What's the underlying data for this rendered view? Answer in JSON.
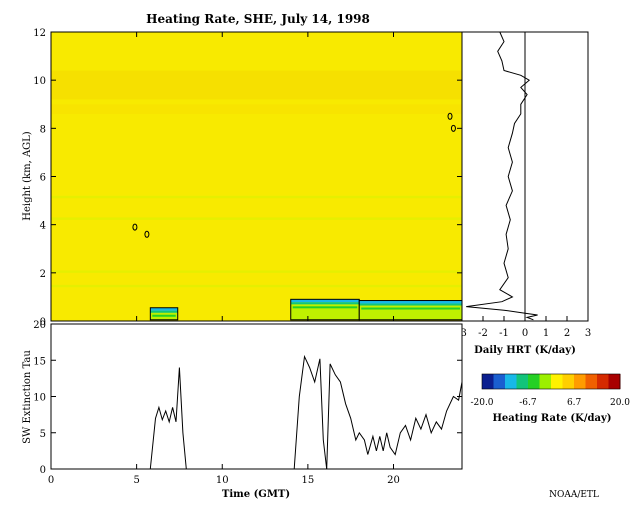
{
  "chart_data": [
    {
      "type": "heatmap",
      "title": "Heating Rate, SHE, July 14, 1998",
      "xlabel": "",
      "ylabel": "Height (km, AGL)",
      "xlim": [
        0,
        24
      ],
      "ylim": [
        0,
        12
      ],
      "yticks": [
        "0",
        "2",
        "4",
        "6",
        "8",
        "10",
        "12"
      ],
      "background_value_k_per_day": 0.5,
      "bands": [
        {
          "y0": 9.2,
          "y1": 10.4,
          "color": "#f6e000"
        },
        {
          "y0": 8.6,
          "y1": 9.0,
          "color": "#f8e400"
        },
        {
          "y0": 4.2,
          "y1": 4.3,
          "color": "#e6ef00"
        },
        {
          "y0": 5.1,
          "y1": 5.2,
          "color": "#e6ef00"
        },
        {
          "y0": 2.0,
          "y1": 2.1,
          "color": "#e6ef00"
        },
        {
          "y0": 1.4,
          "y1": 1.5,
          "color": "#e6ef00"
        }
      ],
      "cloud_blocks": [
        {
          "x0": 5.8,
          "x1": 7.4,
          "y0": 0.05,
          "y1": 0.55
        },
        {
          "x0": 14.0,
          "x1": 18.0,
          "y0": 0.05,
          "y1": 0.9
        },
        {
          "x0": 18.0,
          "x1": 24.0,
          "y0": 0.05,
          "y1": 0.85
        }
      ],
      "contour_spots": [
        {
          "x": 4.9,
          "y": 3.9
        },
        {
          "x": 5.6,
          "y": 3.6
        },
        {
          "x": 23.3,
          "y": 8.5
        },
        {
          "x": 23.5,
          "y": 8.0
        }
      ]
    },
    {
      "type": "line",
      "xlabel": "Daily HRT (K/day)",
      "ylabel": "",
      "xlim": [
        -3,
        3
      ],
      "ylim": [
        0,
        12
      ],
      "xticks": [
        "-3",
        "-2",
        "-1",
        "0",
        "1",
        "2",
        "3"
      ],
      "x_reference_line": 0,
      "points": [
        [
          -1.2,
          12.0
        ],
        [
          -1.0,
          11.6
        ],
        [
          -1.3,
          11.2
        ],
        [
          -1.1,
          10.8
        ],
        [
          -1.0,
          10.4
        ],
        [
          -0.2,
          10.2
        ],
        [
          0.2,
          10.0
        ],
        [
          -0.2,
          9.7
        ],
        [
          0.1,
          9.4
        ],
        [
          -0.2,
          9.0
        ],
        [
          -0.2,
          8.6
        ],
        [
          -0.5,
          8.2
        ],
        [
          -0.6,
          7.8
        ],
        [
          -0.8,
          7.2
        ],
        [
          -0.6,
          6.6
        ],
        [
          -0.8,
          6.0
        ],
        [
          -0.6,
          5.4
        ],
        [
          -0.9,
          4.8
        ],
        [
          -0.7,
          4.2
        ],
        [
          -0.9,
          3.6
        ],
        [
          -0.8,
          3.0
        ],
        [
          -1.0,
          2.4
        ],
        [
          -0.8,
          1.8
        ],
        [
          -1.2,
          1.3
        ],
        [
          -0.6,
          1.0
        ],
        [
          -1.1,
          0.8
        ],
        [
          -2.8,
          0.6
        ],
        [
          -1.0,
          0.45
        ],
        [
          -0.2,
          0.35
        ],
        [
          0.6,
          0.25
        ],
        [
          0.1,
          0.15
        ],
        [
          0.4,
          0.05
        ]
      ]
    },
    {
      "type": "line",
      "title": "",
      "xlabel": "Time (GMT)",
      "ylabel": "SW Extinction Tau",
      "xlim": [
        0,
        24
      ],
      "ylim": [
        0,
        20
      ],
      "xticks": [
        "0",
        "5",
        "10",
        "15",
        "20"
      ],
      "yticks": [
        "0",
        "5",
        "10",
        "15",
        "20"
      ],
      "segments": [
        [
          [
            5.8,
            0
          ],
          [
            6.1,
            7
          ],
          [
            6.3,
            8.5
          ],
          [
            6.5,
            6.8
          ],
          [
            6.7,
            8
          ],
          [
            6.9,
            6.5
          ],
          [
            7.1,
            8.5
          ],
          [
            7.3,
            6.5
          ],
          [
            7.5,
            14
          ],
          [
            7.7,
            5
          ],
          [
            7.9,
            0
          ]
        ],
        [
          [
            14.2,
            0
          ],
          [
            14.5,
            10
          ],
          [
            14.8,
            15.5
          ],
          [
            15.1,
            14
          ],
          [
            15.4,
            12
          ],
          [
            15.7,
            15.2
          ],
          [
            15.9,
            4
          ],
          [
            16.1,
            0
          ]
        ],
        [
          [
            16.1,
            0
          ],
          [
            16.3,
            14.5
          ],
          [
            16.6,
            13
          ],
          [
            16.9,
            12
          ],
          [
            17.2,
            9
          ],
          [
            17.5,
            7
          ],
          [
            17.8,
            4
          ],
          [
            18.0,
            5
          ],
          [
            18.3,
            4
          ],
          [
            18.5,
            2
          ],
          [
            18.8,
            4.5
          ],
          [
            19.0,
            2.5
          ],
          [
            19.2,
            4.5
          ],
          [
            19.4,
            2.5
          ],
          [
            19.6,
            5
          ],
          [
            19.8,
            3
          ],
          [
            20.1,
            2
          ],
          [
            20.4,
            5
          ],
          [
            20.7,
            6
          ],
          [
            21.0,
            4
          ],
          [
            21.3,
            7
          ],
          [
            21.6,
            5.5
          ],
          [
            21.9,
            7.5
          ],
          [
            22.2,
            5
          ],
          [
            22.5,
            6.5
          ],
          [
            22.8,
            5.5
          ],
          [
            23.1,
            8
          ],
          [
            23.5,
            10
          ],
          [
            23.8,
            9.5
          ],
          [
            24.0,
            12
          ]
        ]
      ]
    },
    {
      "type": "colorbar",
      "label": "Heating Rate (K/day)",
      "range": [
        -20,
        20
      ],
      "ticks": [
        "-20.0",
        "-6.7",
        "6.7",
        "20.0"
      ],
      "colors": [
        "#0b1f8f",
        "#1a5fd0",
        "#18b8e8",
        "#12c47a",
        "#25d025",
        "#9cf000",
        "#fff200",
        "#ffcf00",
        "#ff9c00",
        "#f06000",
        "#d52a00",
        "#a80000"
      ]
    }
  ],
  "credit": "NOAA/ETL"
}
